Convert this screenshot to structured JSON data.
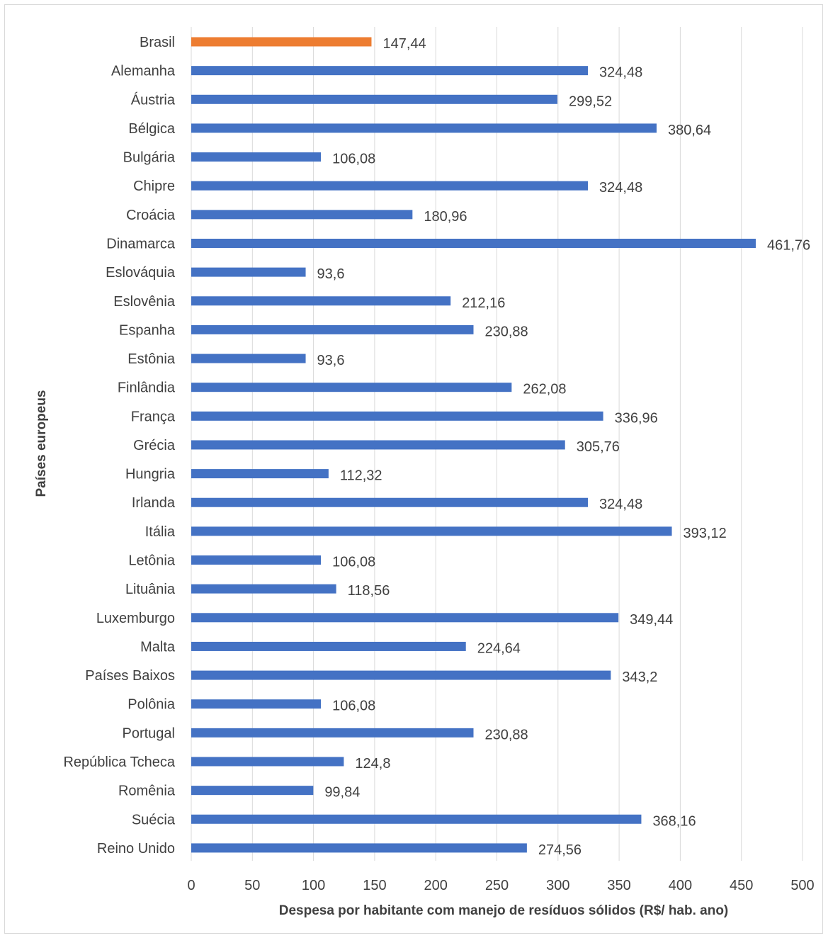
{
  "chart_data": {
    "type": "bar",
    "orientation": "horizontal",
    "title": "",
    "xlabel": "Despesa por habitante com manejo de resíduos sólidos (R$/ hab. ano)",
    "ylabel": "Países europeus",
    "xlim": [
      0,
      500
    ],
    "x_ticks": [
      0,
      50,
      100,
      150,
      200,
      250,
      300,
      350,
      400,
      450,
      500
    ],
    "grid": "vertical",
    "legend": "none",
    "colors": {
      "default": "#4472c4",
      "highlight": "#ed7d31"
    },
    "highlight_category": "Brasil",
    "categories": [
      "Brasil",
      "Alemanha",
      "Áustria",
      "Bélgica",
      "Bulgária",
      "Chipre",
      "Croácia",
      "Dinamarca",
      "Eslováquia",
      "Eslovênia",
      "Espanha",
      "Estônia",
      "Finlândia",
      "França",
      "Grécia",
      "Hungria",
      "Irlanda",
      "Itália",
      "Letônia",
      "Lituânia",
      "Luxemburgo",
      "Malta",
      "Países Baixos",
      "Polônia",
      "Portugal",
      "República Tcheca",
      "Romênia",
      "Suécia",
      "Reino Unido"
    ],
    "values": [
      147.44,
      324.48,
      299.52,
      380.64,
      106.08,
      324.48,
      180.96,
      461.76,
      93.6,
      212.16,
      230.88,
      93.6,
      262.08,
      336.96,
      305.76,
      112.32,
      324.48,
      393.12,
      106.08,
      118.56,
      349.44,
      224.64,
      343.2,
      106.08,
      230.88,
      124.8,
      99.84,
      368.16,
      274.56
    ],
    "value_labels": [
      "147,44",
      "324,48",
      "299,52",
      "380,64",
      "106,08",
      "324,48",
      "180,96",
      "461,76",
      "93,6",
      "212,16",
      "230,88",
      "93,6",
      "262,08",
      "336,96",
      "305,76",
      "112,32",
      "324,48",
      "393,12",
      "106,08",
      "118,56",
      "349,44",
      "224,64",
      "343,2",
      "106,08",
      "230,88",
      "124,8",
      "99,84",
      "368,16",
      "274,56"
    ]
  }
}
